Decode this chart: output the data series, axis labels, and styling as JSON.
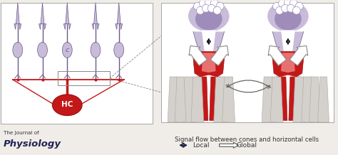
{
  "bg_color": "#f0ede8",
  "title": "Signal flow between cones and horizontal cells",
  "legend_local": "Local",
  "legend_global": "Global",
  "journal_line1": "The Journal of",
  "journal_line2": "Physiology",
  "purple_light": "#c8bcd8",
  "purple_mid": "#9e8cba",
  "purple_dark": "#6a5a8a",
  "red_dark": "#c41818",
  "red_mid": "#dd3333",
  "red_light": "#e87070",
  "red_fade": "#f0a090",
  "gray_light": "#d4d0cc",
  "gray_mid": "#b8b4b0",
  "outline_color": "#666666",
  "arrow_dark": "#222244",
  "white": "#ffffff",
  "border_color": "#999999",
  "left_panel_bg": "#ffffff",
  "right_panel_bg": "#ffffff"
}
